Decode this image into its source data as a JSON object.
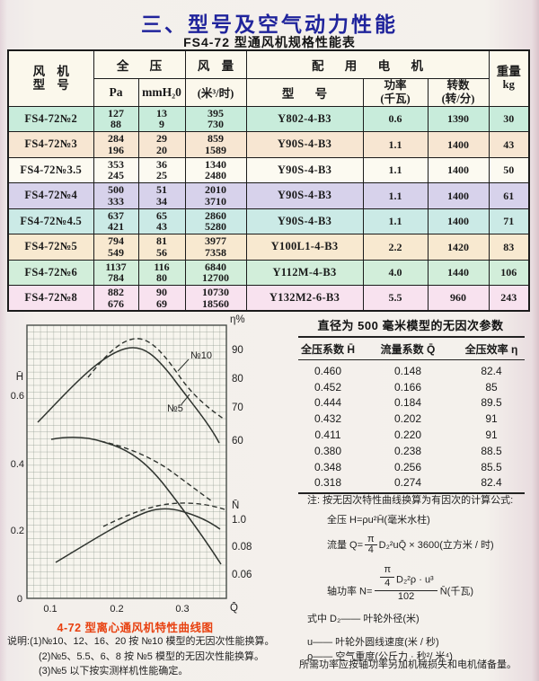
{
  "header": {
    "title": "三、型号及空气动力性能",
    "subtitle": "FS4-72 型通风机规格性能表"
  },
  "spec_table": {
    "header": {
      "fan_model_l1": "风  机",
      "fan_model_l2": "型  号",
      "total_pressure": "全  压",
      "pa": "Pa",
      "mmh2o": "mmH₂0",
      "air_volume": "风  量",
      "air_volume_unit": "(米³/时)",
      "motor_group": "配 用 电 机",
      "motor_model": "型  号",
      "power_l1": "功率",
      "power_l2": "(千瓦)",
      "speed_l1": "转数",
      "speed_l2": "(转/分)",
      "weight_l1": "重量",
      "weight_l2": "kg"
    },
    "rows": [
      {
        "model": "FS4-72№2",
        "pa": [
          "127",
          "88"
        ],
        "mm": [
          "13",
          "9"
        ],
        "flow": [
          "395",
          "730"
        ],
        "motor": "Y802-4-B3",
        "power": "0.6",
        "speed": "1390",
        "weight": "30",
        "color": "#c8ecdb"
      },
      {
        "model": "FS4-72№3",
        "pa": [
          "284",
          "196"
        ],
        "mm": [
          "29",
          "20"
        ],
        "flow": [
          "859",
          "1589"
        ],
        "motor": "Y90S-4-B3",
        "power": "1.1",
        "speed": "1400",
        "weight": "43",
        "color": "#f7e6d2"
      },
      {
        "model": "FS4-72№3.5",
        "pa": [
          "353",
          "245"
        ],
        "mm": [
          "36",
          "25"
        ],
        "flow": [
          "1340",
          "2480"
        ],
        "motor": "Y90S-4-B3",
        "power": "1.1",
        "speed": "1400",
        "weight": "50",
        "color": "#fcfaf1"
      },
      {
        "model": "FS4-72№4",
        "pa": [
          "500",
          "333"
        ],
        "mm": [
          "51",
          "34"
        ],
        "flow": [
          "2010",
          "3710"
        ],
        "motor": "Y90S-4-B3",
        "power": "1.1",
        "speed": "1400",
        "weight": "61",
        "color": "#d7d2eb"
      },
      {
        "model": "FS4-72№4.5",
        "pa": [
          "637",
          "421"
        ],
        "mm": [
          "65",
          "43"
        ],
        "flow": [
          "2860",
          "5280"
        ],
        "motor": "Y90S-4-B3",
        "power": "1.1",
        "speed": "1400",
        "weight": "71",
        "color": "#cbeae6"
      },
      {
        "model": "FS4-72№5",
        "pa": [
          "794",
          "549"
        ],
        "mm": [
          "81",
          "56"
        ],
        "flow": [
          "3977",
          "7358"
        ],
        "motor": "Y100L1-4-B3",
        "power": "2.2",
        "speed": "1420",
        "weight": "83",
        "color": "#f8e9d0"
      },
      {
        "model": "FS4-72№6",
        "pa": [
          "1137",
          "784"
        ],
        "mm": [
          "116",
          "80"
        ],
        "flow": [
          "6840",
          "12700"
        ],
        "motor": "Y112M-4-B3",
        "power": "4.0",
        "speed": "1440",
        "weight": "106",
        "color": "#d2eeda"
      },
      {
        "model": "FS4-72№8",
        "pa": [
          "882",
          "676"
        ],
        "mm": [
          "90",
          "69"
        ],
        "flow": [
          "10730",
          "18560"
        ],
        "motor": "Y132M2-6-B3",
        "power": "5.5",
        "speed": "960",
        "weight": "243",
        "color": "#f8e2ef"
      }
    ]
  },
  "chart": {
    "h_axis_label": "H̄",
    "eta_axis_label": "η%",
    "n_axis_label": "N̄",
    "q_axis_label": "Q̄",
    "left_ticks": [
      "0.6",
      "0.4",
      "0.2",
      "0"
    ],
    "eta_ticks": [
      "90",
      "80",
      "70",
      "60"
    ],
    "n_ticks": [
      "1.0",
      "0.08",
      "0.06"
    ],
    "x_ticks": [
      "0.1",
      "0.2",
      "0.3"
    ],
    "label_no10": "№10",
    "label_no5": "№5",
    "caption": "4-72 型离心通风机特性曲线图"
  },
  "chart_data": {
    "type": "line",
    "title": "4-72 型离心通风机特性曲线图",
    "x_axis": {
      "label": "Q̄",
      "ticks": [
        0.1,
        0.2,
        0.3
      ],
      "range": [
        0.065,
        0.367
      ],
      "grid": true
    },
    "y_axis_left": {
      "label": "H̄",
      "ticks": [
        0,
        0.2,
        0.4,
        0.6
      ],
      "range": [
        0,
        0.8
      ]
    },
    "y_axis_right_eta": {
      "label": "η%",
      "ticks": [
        60,
        70,
        80,
        90
      ]
    },
    "y_axis_right_N": {
      "label": "N̄",
      "ticks": [
        "1.0",
        "0.08",
        "0.06"
      ]
    },
    "series": [
      {
        "name": "η №5",
        "style": "solid",
        "shape": "rises from (0.07,65%) to peak ≈92% at Q̄≈0.21 then falls to ≈60% at Q̄≈0.36"
      },
      {
        "name": "η №10",
        "style": "dashed",
        "shape": "rises to peak ≈94% at Q̄≈0.225 then falls to ≈67% at Q̄≈0.365"
      },
      {
        "name": "H̄ №5",
        "style": "solid",
        "shape": "flat ≈0.46 near Q̄≈0.1 falling to ≈0.10 at Q̄≈0.36"
      },
      {
        "name": "H̄ №10",
        "style": "dashed",
        "shape": "≈0.46 near Q̄≈0.12 falling to ≈0.28 at Q̄≈0.34"
      },
      {
        "name": "N̄ №5",
        "style": "solid",
        "shape": "rises from lower left, flat max near Q̄≈0.25, slight fall to right"
      },
      {
        "name": "N̄ №10",
        "style": "dashed",
        "shape": "slightly above N̄ №5 on the right, flat max near Q̄≈0.27"
      }
    ],
    "H_Q_eta_points": [
      [
        0.46,
        0.148,
        82.4
      ],
      [
        0.452,
        0.166,
        85
      ],
      [
        0.444,
        0.184,
        89.5
      ],
      [
        0.432,
        0.202,
        91
      ],
      [
        0.411,
        0.22,
        91
      ],
      [
        0.38,
        0.238,
        88.5
      ],
      [
        0.348,
        0.256,
        85.5
      ],
      [
        0.318,
        0.274,
        82.4
      ]
    ]
  },
  "dimensionless": {
    "title": "直径为 500 毫米模型的无因次参数",
    "headers": [
      "全压系数 H̄",
      "流量系数 Q̄",
      "全压效率 η"
    ],
    "rows": [
      [
        "0.460",
        "0.148",
        "82.4"
      ],
      [
        "0.452",
        "0.166",
        "85"
      ],
      [
        "0.444",
        "0.184",
        "89.5"
      ],
      [
        "0.432",
        "0.202",
        "91"
      ],
      [
        "0.411",
        "0.220",
        "91"
      ],
      [
        "0.380",
        "0.238",
        "88.5"
      ],
      [
        "0.348",
        "0.256",
        "85.5"
      ],
      [
        "0.318",
        "0.274",
        "82.4"
      ]
    ]
  },
  "formulas": {
    "note_head": "注: 按无因次特性曲线换算为有因次的计算公式:",
    "f1": "全压 H=ρu²H̄(毫米水柱)",
    "f2_pre": "流量 Q=",
    "f2_num": "π",
    "f2_den": "4",
    "f2_rest": "D₂²uQ̄ × 3600(立方米 / 时)",
    "f3_pre": "轴功率 N=",
    "f3_num_frac_num": "π",
    "f3_num_frac_den": "4",
    "f3_num_rest": "D₂²ρ · u³",
    "f3_den": "102",
    "f3_rest": "N̄(千瓦)",
    "where_1": "式中 D₂—— 叶轮外径(米)",
    "where_2": "u—— 叶轮外圆线速度(米 / 秒)",
    "where_3": "ρ—— 空气重度(公斤力 · 秒²/ 米⁴)",
    "footer": "所需功率应按轴功率另加机械损失和电机储备量。"
  },
  "notes_left": {
    "prefix": "说明:",
    "item1": "(1)№10、12、16、20 按 №10 模型的无因次性能换算。",
    "item2": "(2)№5、5.5、6、8 按 №5 模型的无因次性能换算。",
    "item3": "(3)№5 以下按实测样机性能确定。"
  }
}
